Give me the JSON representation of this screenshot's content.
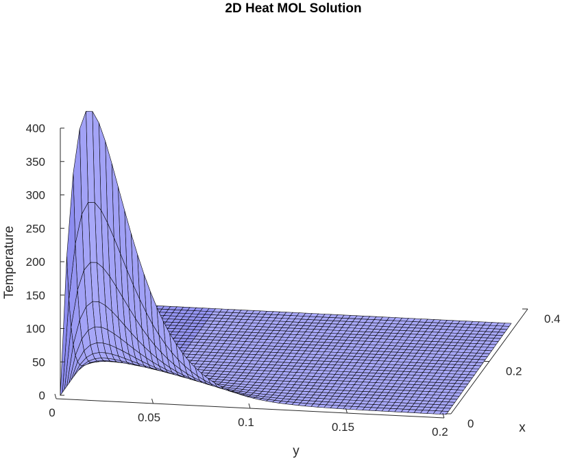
{
  "chart_data": {
    "type": "surface",
    "title": "2D Heat MOL Solution",
    "xlabel": "y",
    "ylabel": "x",
    "zlabel": "Temperature",
    "y_ticks": [
      "0",
      "0.05",
      "0.1",
      "0.15",
      "0.2"
    ],
    "x_ticks": [
      "0",
      "0.2",
      "0.4"
    ],
    "z_ticks": [
      "0",
      "50",
      "100",
      "150",
      "200",
      "250",
      "300",
      "350",
      "400"
    ],
    "ylim": [
      0,
      0.2
    ],
    "xlim": [
      0,
      0.4
    ],
    "zlim": [
      0,
      400
    ],
    "peak": {
      "y": 0.015,
      "x": 0,
      "z": 430
    },
    "far_field_temperature": 0,
    "grid": false,
    "colors": {
      "face": "#a8a8f8",
      "face_dark": "#5c5ce0",
      "edge": "#000000",
      "axis": "#262626"
    }
  }
}
